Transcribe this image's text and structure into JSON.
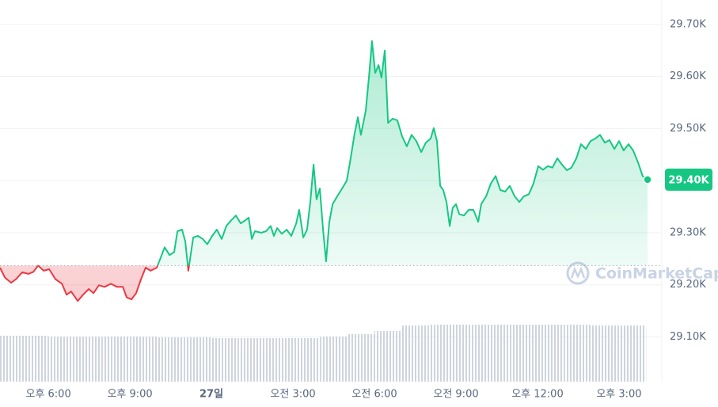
{
  "chart_data": {
    "type": "line",
    "x": [
      -7.78,
      -7.6,
      -7.37,
      -7.19,
      -6.96,
      -6.73,
      -6.55,
      -6.38,
      -6.17,
      -5.97,
      -5.74,
      -5.5,
      -5.33,
      -5.16,
      -4.92,
      -4.72,
      -4.51,
      -4.34,
      -4.14,
      -3.93,
      -3.7,
      -3.47,
      -3.26,
      -3.12,
      -2.94,
      -2.77,
      -2.59,
      -2.42,
      -2.24,
      -2.01,
      -1.86,
      -1.72,
      -1.54,
      -1.37,
      -1.25,
      -1.08,
      -0.96,
      -0.85,
      -0.67,
      -0.5,
      -0.32,
      -0.15,
      0.03,
      0.2,
      0.38,
      0.55,
      0.73,
      0.9,
      1.08,
      1.25,
      1.37,
      1.49,
      1.6,
      1.83,
      2.01,
      2.18,
      2.3,
      2.42,
      2.59,
      2.77,
      2.94,
      3.12,
      3.23,
      3.38,
      3.52,
      3.64,
      3.76,
      3.87,
      3.99,
      4.11,
      4.22,
      4.34,
      4.46,
      4.63,
      4.81,
      4.98,
      5.1,
      5.27,
      5.39,
      5.5,
      5.68,
      5.8,
      5.91,
      6.03,
      6.15,
      6.26,
      6.38,
      6.5,
      6.67,
      6.84,
      7.02,
      7.19,
      7.37,
      7.54,
      7.72,
      7.89,
      8.07,
      8.18,
      8.3,
      8.42,
      8.53,
      8.65,
      8.77,
      8.88,
      9.0,
      9.12,
      9.29,
      9.47,
      9.64,
      9.82,
      9.93,
      10.11,
      10.28,
      10.46,
      10.63,
      10.81,
      10.98,
      11.16,
      11.33,
      11.5,
      11.68,
      11.85,
      12.03,
      12.2,
      12.38,
      12.55,
      12.73,
      12.9,
      13.08,
      13.25,
      13.43,
      13.6,
      13.78,
      13.95,
      14.13,
      14.3,
      14.48,
      14.65,
      14.83,
      15.0,
      15.17,
      15.35,
      15.52,
      15.7,
      15.87,
      16.05
    ],
    "values": [
      29233,
      29214,
      29204,
      29211,
      29224,
      29221,
      29225,
      29237,
      29227,
      29230,
      29211,
      29202,
      29181,
      29187,
      29169,
      29181,
      29192,
      29184,
      29199,
      29196,
      29202,
      29196,
      29196,
      29176,
      29172,
      29184,
      29211,
      29233,
      29227,
      29233,
      29253,
      29272,
      29257,
      29263,
      29303,
      29306,
      29283,
      29227,
      29291,
      29294,
      29288,
      29278,
      29294,
      29306,
      29288,
      29313,
      29324,
      29333,
      29318,
      29324,
      29329,
      29288,
      29303,
      29300,
      29303,
      29313,
      29294,
      29309,
      29298,
      29306,
      29294,
      29318,
      29344,
      29291,
      29306,
      29359,
      29431,
      29364,
      29385,
      29306,
      29245,
      29321,
      29355,
      29370,
      29385,
      29400,
      29435,
      29491,
      29522,
      29488,
      29534,
      29601,
      29668,
      29607,
      29622,
      29598,
      29650,
      29511,
      29519,
      29516,
      29485,
      29466,
      29488,
      29476,
      29455,
      29473,
      29481,
      29501,
      29476,
      29390,
      29382,
      29359,
      29313,
      29348,
      29355,
      29336,
      29333,
      29344,
      29344,
      29321,
      29355,
      29370,
      29394,
      29409,
      29382,
      29379,
      29390,
      29370,
      29359,
      29370,
      29374,
      29394,
      29428,
      29421,
      29428,
      29425,
      29443,
      29431,
      29420,
      29425,
      29443,
      29470,
      29461,
      29476,
      29481,
      29488,
      29473,
      29478,
      29461,
      29476,
      29458,
      29470,
      29458,
      29435,
      29409,
      29402
    ],
    "last_value_label": "29.40K",
    "baseline": 29237,
    "up_color": "#16c784",
    "down_color": "#ea3943",
    "volume": {
      "color": "#d5d9e0",
      "x": [
        -7.5,
        -6.5,
        -5.5,
        -4.5,
        -3.5,
        -2.5,
        -1.5,
        -0.5,
        0.5,
        1.5,
        2.5,
        3.5,
        4.5,
        5.5,
        6.5,
        7.5,
        8.5,
        9.5,
        10.5,
        11.5,
        12.5,
        13.5,
        14.5,
        15.5
      ],
      "values": [
        58,
        58,
        57,
        57,
        57,
        57,
        56,
        56,
        55,
        55,
        55,
        55,
        57,
        60,
        64,
        71,
        72,
        72,
        72,
        72,
        72,
        72,
        71,
        71
      ]
    },
    "xlim": [
      -7.78,
      16.05
    ],
    "ylim": [
      29014,
      29747
    ],
    "xticks": [
      {
        "value": -6,
        "label": "오후 6:00"
      },
      {
        "value": -3,
        "label": "오후 9:00"
      },
      {
        "value": 0,
        "label": "27일"
      },
      {
        "value": 3,
        "label": "오전 3:00"
      },
      {
        "value": 6,
        "label": "오전 6:00"
      },
      {
        "value": 9,
        "label": "오전 9:00"
      },
      {
        "value": 12,
        "label": "오후 12:00"
      },
      {
        "value": 15,
        "label": "오후 3:00"
      }
    ],
    "yticks": [
      {
        "value": 29100,
        "label": "29.10K"
      },
      {
        "value": 29200,
        "label": "29.20K"
      },
      {
        "value": 29300,
        "label": "29.30K"
      },
      {
        "value": 29400,
        "label": "29.40K"
      },
      {
        "value": 29500,
        "label": "29.50K"
      },
      {
        "value": 29600,
        "label": "29.60K"
      },
      {
        "value": 29700,
        "label": "29.70K"
      }
    ],
    "grid": true,
    "watermark": "CoinMarketCap"
  }
}
